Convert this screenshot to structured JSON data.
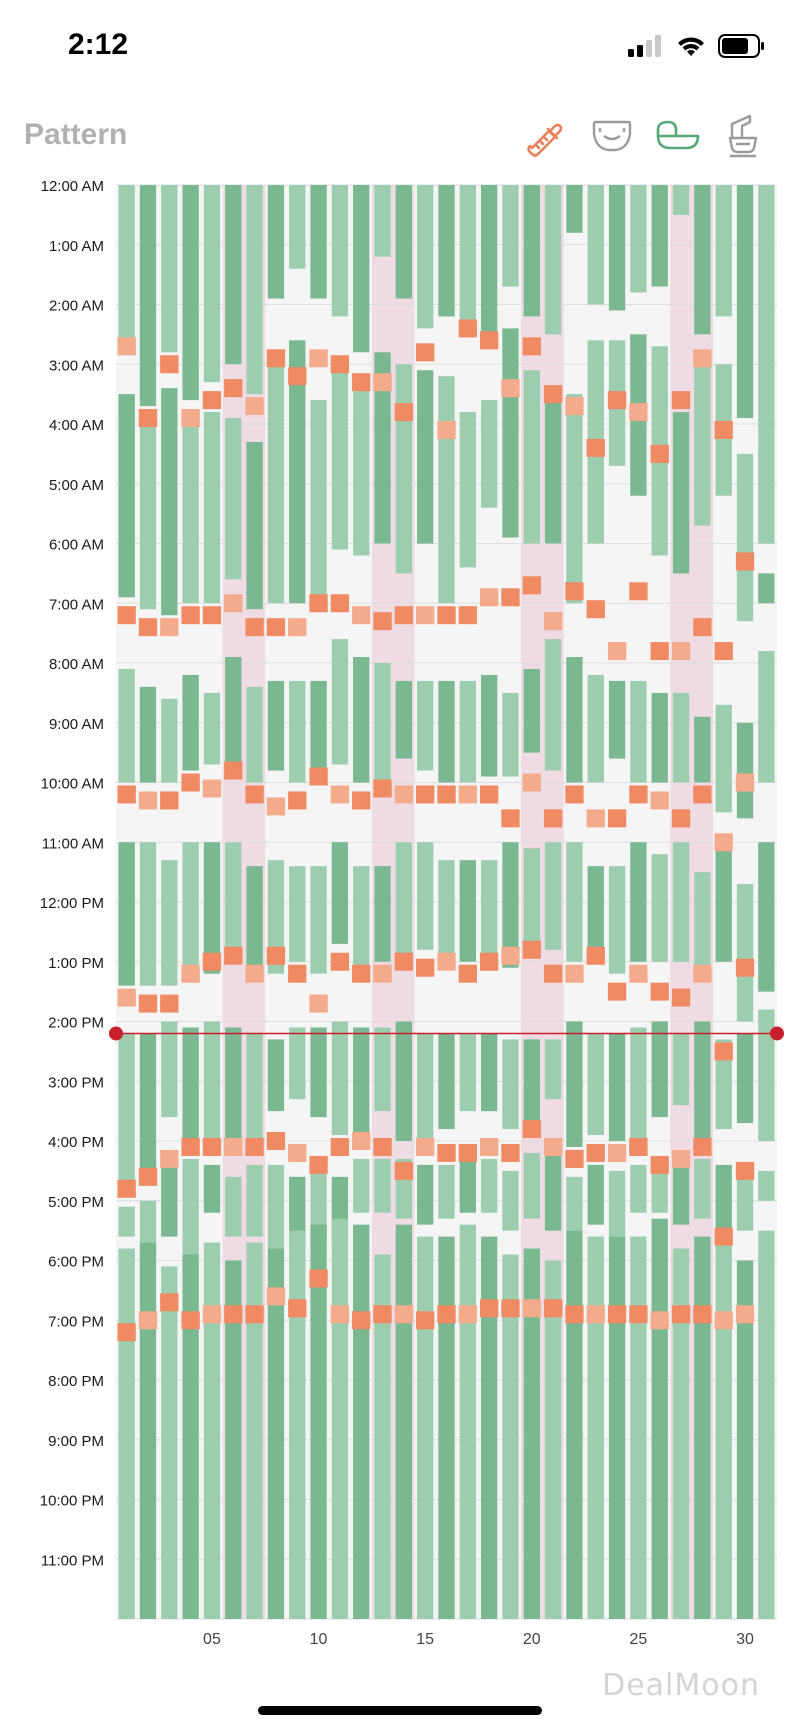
{
  "status_bar": {
    "time": "2:12"
  },
  "header": {
    "title": "Pattern",
    "filters": [
      {
        "icon": "bottle-icon",
        "active": true,
        "color": "#e8805a"
      },
      {
        "icon": "diaper-icon",
        "active": false,
        "color": "#9a9a9a"
      },
      {
        "icon": "bassinet-icon",
        "active": true,
        "color": "#55a878"
      },
      {
        "icon": "breast-pump-icon",
        "active": false,
        "color": "#9a9a9a"
      }
    ]
  },
  "watermark": "DealMoon",
  "chart_data": {
    "type": "heatmap",
    "title": "",
    "y_ticks": [
      "12:00 AM",
      "1:00 AM",
      "2:00 AM",
      "3:00 AM",
      "4:00 AM",
      "5:00 AM",
      "6:00 AM",
      "7:00 AM",
      "8:00 AM",
      "9:00 AM",
      "10:00 AM",
      "11:00 AM",
      "12:00 PM",
      "1:00 PM",
      "2:00 PM",
      "3:00 PM",
      "4:00 PM",
      "5:00 PM",
      "6:00 PM",
      "7:00 PM",
      "8:00 PM",
      "9:00 PM",
      "10:00 PM",
      "11:00 PM"
    ],
    "x_ticks": [
      "05",
      "10",
      "15",
      "20",
      "25",
      "30"
    ],
    "x_tick_days": [
      5,
      10,
      15,
      20,
      25,
      30
    ],
    "days": 31,
    "y_range_hours": [
      0,
      24
    ],
    "current_time_hours": 14.2,
    "colors": {
      "sleep_dark": "#79b890",
      "sleep_light": "#9ccdaf",
      "feed": "#f08a62",
      "feed_light": "#f4ab8c",
      "highlight": "#efdbe3",
      "empty": "#f5f5f5",
      "now_line": "#c91f2c"
    },
    "highlight_days": [
      6,
      7,
      13,
      14,
      20,
      21,
      27,
      28
    ],
    "sleep_sessions": [
      [
        [
          0,
          2.6
        ],
        [
          3.5,
          6.9
        ],
        [
          8.1,
          10.0
        ],
        [
          11.0,
          13.4
        ],
        [
          14.2,
          16.9
        ],
        [
          17.1,
          17.6
        ],
        [
          17.8,
          24
        ]
      ],
      [
        [
          0,
          3.7
        ],
        [
          4.0,
          7.1
        ],
        [
          8.4,
          10.0
        ],
        [
          11.0,
          13.4
        ],
        [
          14.2,
          16.7
        ],
        [
          17.0,
          17.9
        ],
        [
          17.7,
          24
        ]
      ],
      [
        [
          0,
          2.8
        ],
        [
          3.4,
          7.2
        ],
        [
          8.6,
          10.0
        ],
        [
          11.3,
          13.4
        ],
        [
          14.0,
          15.6
        ],
        [
          16.4,
          17.6
        ],
        [
          18.1,
          24
        ]
      ],
      [
        [
          0,
          3.6
        ],
        [
          4.0,
          7.0
        ],
        [
          8.2,
          9.8
        ],
        [
          11.0,
          13.2
        ],
        [
          14.1,
          16.0
        ],
        [
          16.3,
          17.9
        ],
        [
          17.9,
          24
        ]
      ],
      [
        [
          0,
          3.3
        ],
        [
          3.8,
          7.0
        ],
        [
          8.5,
          9.7
        ],
        [
          11.0,
          13.2
        ],
        [
          14.0,
          16.0
        ],
        [
          16.4,
          17.2
        ],
        [
          17.7,
          24
        ]
      ],
      [
        [
          0,
          3.0
        ],
        [
          3.9,
          6.6
        ],
        [
          7.9,
          9.7
        ],
        [
          11.0,
          13.0
        ],
        [
          14.1,
          16.0
        ],
        [
          16.6,
          17.6
        ],
        [
          18.0,
          24
        ]
      ],
      [
        [
          0,
          3.5
        ],
        [
          4.3,
          7.1
        ],
        [
          8.4,
          10.0
        ],
        [
          11.4,
          13.2
        ],
        [
          14.2,
          16.0
        ],
        [
          16.4,
          17.6
        ],
        [
          17.7,
          24
        ]
      ],
      [
        [
          0,
          1.9
        ],
        [
          2.9,
          7.0
        ],
        [
          8.3,
          9.8
        ],
        [
          11.3,
          13.2
        ],
        [
          14.3,
          15.5
        ],
        [
          16.4,
          17.8
        ],
        [
          17.8,
          24
        ]
      ],
      [
        [
          0,
          1.4
        ],
        [
          2.6,
          7.0
        ],
        [
          8.3,
          10.0
        ],
        [
          11.4,
          13.0
        ],
        [
          14.1,
          15.3
        ],
        [
          16.6,
          17.8
        ],
        [
          17.5,
          24
        ]
      ],
      [
        [
          0,
          1.9
        ],
        [
          3.6,
          7.0
        ],
        [
          8.3,
          10.0
        ],
        [
          11.4,
          13.2
        ],
        [
          14.1,
          15.6
        ],
        [
          16.4,
          17.7
        ],
        [
          17.4,
          24
        ]
      ],
      [
        [
          0,
          2.2
        ],
        [
          3.0,
          6.1
        ],
        [
          7.6,
          9.7
        ],
        [
          11.0,
          12.7
        ],
        [
          14.0,
          15.9
        ],
        [
          16.6,
          17.7
        ],
        [
          17.3,
          24
        ]
      ],
      [
        [
          0,
          2.8
        ],
        [
          3.4,
          6.2
        ],
        [
          7.9,
          10.0
        ],
        [
          11.4,
          13.2
        ],
        [
          14.1,
          16.0
        ],
        [
          16.3,
          17.2
        ],
        [
          17.4,
          24
        ]
      ],
      [
        [
          0,
          1.2
        ],
        [
          2.8,
          6.0
        ],
        [
          8.0,
          10.0
        ],
        [
          11.4,
          13.0
        ],
        [
          14.1,
          15.5
        ],
        [
          16.3,
          17.2
        ],
        [
          17.9,
          24
        ]
      ],
      [
        [
          0,
          1.9
        ],
        [
          3.0,
          6.5
        ],
        [
          8.3,
          9.6
        ],
        [
          11.0,
          13.0
        ],
        [
          14.0,
          16.0
        ],
        [
          16.3,
          17.3
        ],
        [
          17.4,
          24
        ]
      ],
      [
        [
          0,
          2.4
        ],
        [
          3.1,
          6.0
        ],
        [
          8.3,
          9.8
        ],
        [
          11.0,
          12.8
        ],
        [
          14.2,
          16.0
        ],
        [
          16.4,
          17.4
        ],
        [
          17.6,
          24
        ]
      ],
      [
        [
          0,
          2.2
        ],
        [
          3.2,
          7.0
        ],
        [
          8.3,
          10.0
        ],
        [
          11.3,
          13.0
        ],
        [
          14.2,
          15.8
        ],
        [
          16.4,
          17.3
        ],
        [
          17.6,
          24
        ]
      ],
      [
        [
          0,
          2.5
        ],
        [
          3.8,
          6.4
        ],
        [
          8.3,
          10.0
        ],
        [
          11.3,
          13.0
        ],
        [
          14.2,
          15.5
        ],
        [
          16.3,
          17.2
        ],
        [
          17.4,
          24
        ]
      ],
      [
        [
          0,
          2.5
        ],
        [
          3.6,
          5.4
        ],
        [
          8.2,
          9.9
        ],
        [
          11.3,
          13.0
        ],
        [
          14.2,
          15.5
        ],
        [
          16.3,
          17.2
        ],
        [
          17.6,
          24
        ]
      ],
      [
        [
          0,
          1.7
        ],
        [
          2.4,
          5.9
        ],
        [
          8.5,
          9.9
        ],
        [
          11.0,
          13.1
        ],
        [
          14.3,
          15.8
        ],
        [
          16.5,
          17.5
        ],
        [
          17.9,
          24
        ]
      ],
      [
        [
          0,
          2.2
        ],
        [
          3.1,
          6.0
        ],
        [
          8.1,
          9.5
        ],
        [
          11.1,
          12.9
        ],
        [
          14.3,
          15.7
        ],
        [
          16.2,
          17.3
        ],
        [
          17.8,
          24
        ]
      ],
      [
        [
          0,
          2.5
        ],
        [
          3.6,
          6.0
        ],
        [
          7.6,
          9.8
        ],
        [
          11.0,
          12.8
        ],
        [
          14.3,
          15.3
        ],
        [
          16.0,
          17.5
        ],
        [
          18.0,
          24
        ]
      ],
      [
        [
          0,
          0.8
        ],
        [
          3.5,
          7.0
        ],
        [
          7.9,
          10.0
        ],
        [
          11.0,
          13.0
        ],
        [
          14.0,
          16.1
        ],
        [
          16.6,
          17.5
        ],
        [
          17.5,
          24
        ]
      ],
      [
        [
          0,
          2.0
        ],
        [
          2.6,
          6.0
        ],
        [
          8.2,
          10.0
        ],
        [
          11.4,
          13.0
        ],
        [
          14.2,
          15.9
        ],
        [
          16.4,
          17.4
        ],
        [
          17.6,
          24
        ]
      ],
      [
        [
          0,
          2.1
        ],
        [
          2.6,
          4.7
        ],
        [
          8.3,
          9.6
        ],
        [
          11.4,
          13.2
        ],
        [
          14.2,
          16.0
        ],
        [
          16.5,
          17.6
        ],
        [
          17.6,
          24
        ]
      ],
      [
        [
          0,
          1.8
        ],
        [
          2.5,
          5.2
        ],
        [
          8.3,
          10.0
        ],
        [
          11.0,
          13.0
        ],
        [
          14.1,
          16.0
        ],
        [
          16.4,
          17.2
        ],
        [
          17.6,
          24
        ]
      ],
      [
        [
          0,
          1.7
        ],
        [
          2.7,
          6.2
        ],
        [
          8.5,
          10.0
        ],
        [
          11.2,
          13.0
        ],
        [
          14.0,
          15.6
        ],
        [
          16.3,
          17.2
        ],
        [
          17.3,
          24
        ]
      ],
      [
        [
          0,
          0.5
        ],
        [
          3.8,
          6.5
        ],
        [
          8.5,
          10.0
        ],
        [
          11.0,
          13.0
        ],
        [
          14.2,
          15.4
        ],
        [
          16.3,
          17.4
        ],
        [
          17.8,
          24
        ]
      ],
      [
        [
          0,
          2.5
        ],
        [
          2.8,
          5.7
        ],
        [
          8.9,
          10.0
        ],
        [
          11.5,
          13.1
        ],
        [
          14.0,
          16.0
        ],
        [
          16.3,
          17.3
        ],
        [
          17.6,
          24
        ]
      ],
      [
        [
          0,
          2.2
        ],
        [
          3.0,
          5.2
        ],
        [
          8.7,
          10.5
        ],
        [
          11.0,
          13.0
        ],
        [
          14.3,
          15.8
        ],
        [
          16.4,
          17.5
        ],
        [
          17.5,
          24
        ]
      ],
      [
        [
          0,
          3.9
        ],
        [
          4.5,
          7.3
        ],
        [
          9.0,
          10.6
        ],
        [
          11.7,
          14.0
        ],
        [
          14.2,
          15.7
        ],
        [
          16.5,
          17.5
        ],
        [
          18.0,
          24
        ]
      ],
      [
        [
          0,
          6.0
        ],
        [
          6.5,
          7.0
        ],
        [
          7.8,
          10.0
        ],
        [
          11.0,
          13.5
        ],
        [
          13.8,
          16.0
        ],
        [
          16.5,
          17.0
        ],
        [
          17.5,
          24
        ]
      ]
    ],
    "feeds": [
      [
        2.7,
        7.2,
        10.2,
        13.6,
        16.8,
        19.2
      ],
      [
        3.9,
        7.4,
        10.3,
        13.7,
        16.6,
        19.0
      ],
      [
        3.0,
        7.4,
        10.3,
        13.7,
        16.3,
        18.7
      ],
      [
        3.9,
        7.2,
        10.0,
        13.2,
        16.1,
        19.0
      ],
      [
        3.6,
        7.2,
        10.1,
        13.0,
        16.1,
        18.9
      ],
      [
        3.4,
        7.0,
        9.8,
        12.9,
        16.1,
        18.9
      ],
      [
        3.7,
        7.4,
        10.2,
        13.2,
        16.1,
        18.9
      ],
      [
        2.9,
        7.4,
        10.4,
        12.9,
        16.0,
        18.6
      ],
      [
        3.2,
        7.4,
        10.3,
        13.2,
        16.2,
        18.8
      ],
      [
        2.9,
        7.0,
        9.9,
        13.7,
        16.4,
        18.3
      ],
      [
        3.0,
        7.0,
        10.2,
        13.0,
        16.1,
        18.9
      ],
      [
        3.3,
        7.2,
        10.3,
        13.2,
        16.0,
        19.0
      ],
      [
        3.3,
        7.3,
        10.1,
        13.2,
        16.1,
        18.9
      ],
      [
        3.8,
        7.2,
        10.2,
        13.0,
        16.5,
        18.9
      ],
      [
        2.8,
        7.2,
        10.2,
        13.1,
        16.1,
        19.0
      ],
      [
        4.1,
        7.2,
        10.2,
        13.0,
        16.2,
        18.9
      ],
      [
        2.4,
        7.2,
        10.2,
        13.2,
        16.2,
        18.9
      ],
      [
        2.6,
        6.9,
        10.2,
        13.0,
        16.1,
        18.8
      ],
      [
        3.4,
        6.9,
        10.6,
        12.9,
        16.2,
        18.8
      ],
      [
        2.7,
        6.7,
        10.0,
        12.8,
        15.8,
        18.8
      ],
      [
        3.5,
        7.3,
        10.6,
        13.2,
        16.1,
        18.8
      ],
      [
        3.7,
        6.8,
        10.2,
        13.2,
        16.3,
        18.9
      ],
      [
        4.4,
        7.1,
        10.6,
        12.9,
        16.2,
        18.9
      ],
      [
        3.6,
        7.8,
        10.6,
        13.5,
        16.2,
        18.9
      ],
      [
        3.8,
        6.8,
        10.2,
        13.2,
        16.1,
        18.9
      ],
      [
        4.5,
        7.8,
        10.3,
        13.5,
        16.4,
        19.0
      ],
      [
        3.6,
        7.8,
        10.6,
        13.6,
        16.3,
        18.9
      ],
      [
        2.9,
        7.4,
        10.2,
        13.2,
        16.1,
        18.9
      ],
      [
        4.1,
        7.8,
        11.0,
        14.5,
        17.6,
        19.0
      ],
      [
        6.3,
        10.0,
        13.1,
        16.5,
        18.9
      ],
      []
    ]
  }
}
